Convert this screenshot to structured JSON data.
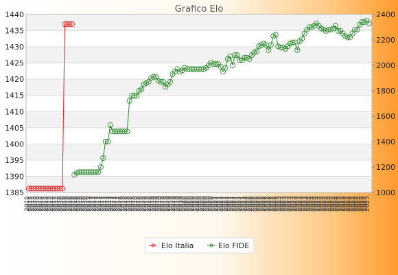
{
  "chart_data": {
    "type": "line",
    "title": "Grafico Elo",
    "left_axis": {
      "ylim": [
        1385,
        1440
      ],
      "ticks": [
        1385,
        1390,
        1395,
        1400,
        1405,
        1410,
        1415,
        1420,
        1425,
        1430,
        1435,
        1440
      ]
    },
    "right_axis": {
      "ylim": [
        1000,
        2400
      ],
      "ticks": [
        1000,
        1200,
        1400,
        1600,
        1800,
        2000,
        2200,
        2400
      ]
    },
    "x_label_samples": [
      "2015",
      "2016",
      "2017",
      "2018",
      "2019",
      "2020",
      "2021",
      "2022",
      "2023",
      "2024",
      "2025"
    ],
    "grid": true,
    "legend": "bottom-center",
    "series": [
      {
        "name": "Elo Italia",
        "axis": "left",
        "color": "#dd2222",
        "values": [
          1386.2,
          1386.2,
          1386.2,
          1386.2,
          1386.2,
          1386.2,
          1386.2,
          1386.2,
          1386.2,
          1386.2,
          1386.2,
          1386.2,
          1386.2,
          1386.2,
          1386.2,
          1437,
          1437,
          1437,
          1437
        ]
      },
      {
        "name": "Elo FIDE",
        "axis": "right",
        "color": "#2b8a2b",
        "start_index": 19,
        "values": [
          1140,
          1155,
          1160,
          1160,
          1160,
          1160,
          1160,
          1160,
          1160,
          1160,
          1160,
          1200,
          1270,
          1400,
          1400,
          1530,
          1480,
          1480,
          1480,
          1480,
          1480,
          1480,
          1480,
          1720,
          1760,
          1760,
          1760,
          1800,
          1810,
          1850,
          1860,
          1870,
          1900,
          1910,
          1910,
          1880,
          1870,
          1870,
          1830,
          1850,
          1870,
          1930,
          1950,
          1970,
          1950,
          1960,
          1980,
          1970,
          1970,
          1970,
          1970,
          1970,
          1970,
          1970,
          1970,
          1980,
          2000,
          2020,
          2010,
          2010,
          2010,
          1990,
          1950,
          1980,
          2050,
          2070,
          2000,
          2080,
          2080,
          2040,
          2040,
          2060,
          2060,
          2050,
          2080,
          2100,
          2110,
          2150,
          2160,
          2170,
          2160,
          2120,
          2160,
          2230,
          2240,
          2150,
          2140,
          2140,
          2130,
          2150,
          2170,
          2180,
          2180,
          2120,
          2190,
          2210,
          2250,
          2280,
          2300,
          2300,
          2310,
          2330,
          2310,
          2290,
          2280,
          2270,
          2280,
          2280,
          2290,
          2310,
          2270,
          2270,
          2250,
          2230,
          2220,
          2220,
          2250,
          2280,
          2280,
          2320,
          2340,
          2340,
          2350,
          2330
        ]
      }
    ]
  }
}
